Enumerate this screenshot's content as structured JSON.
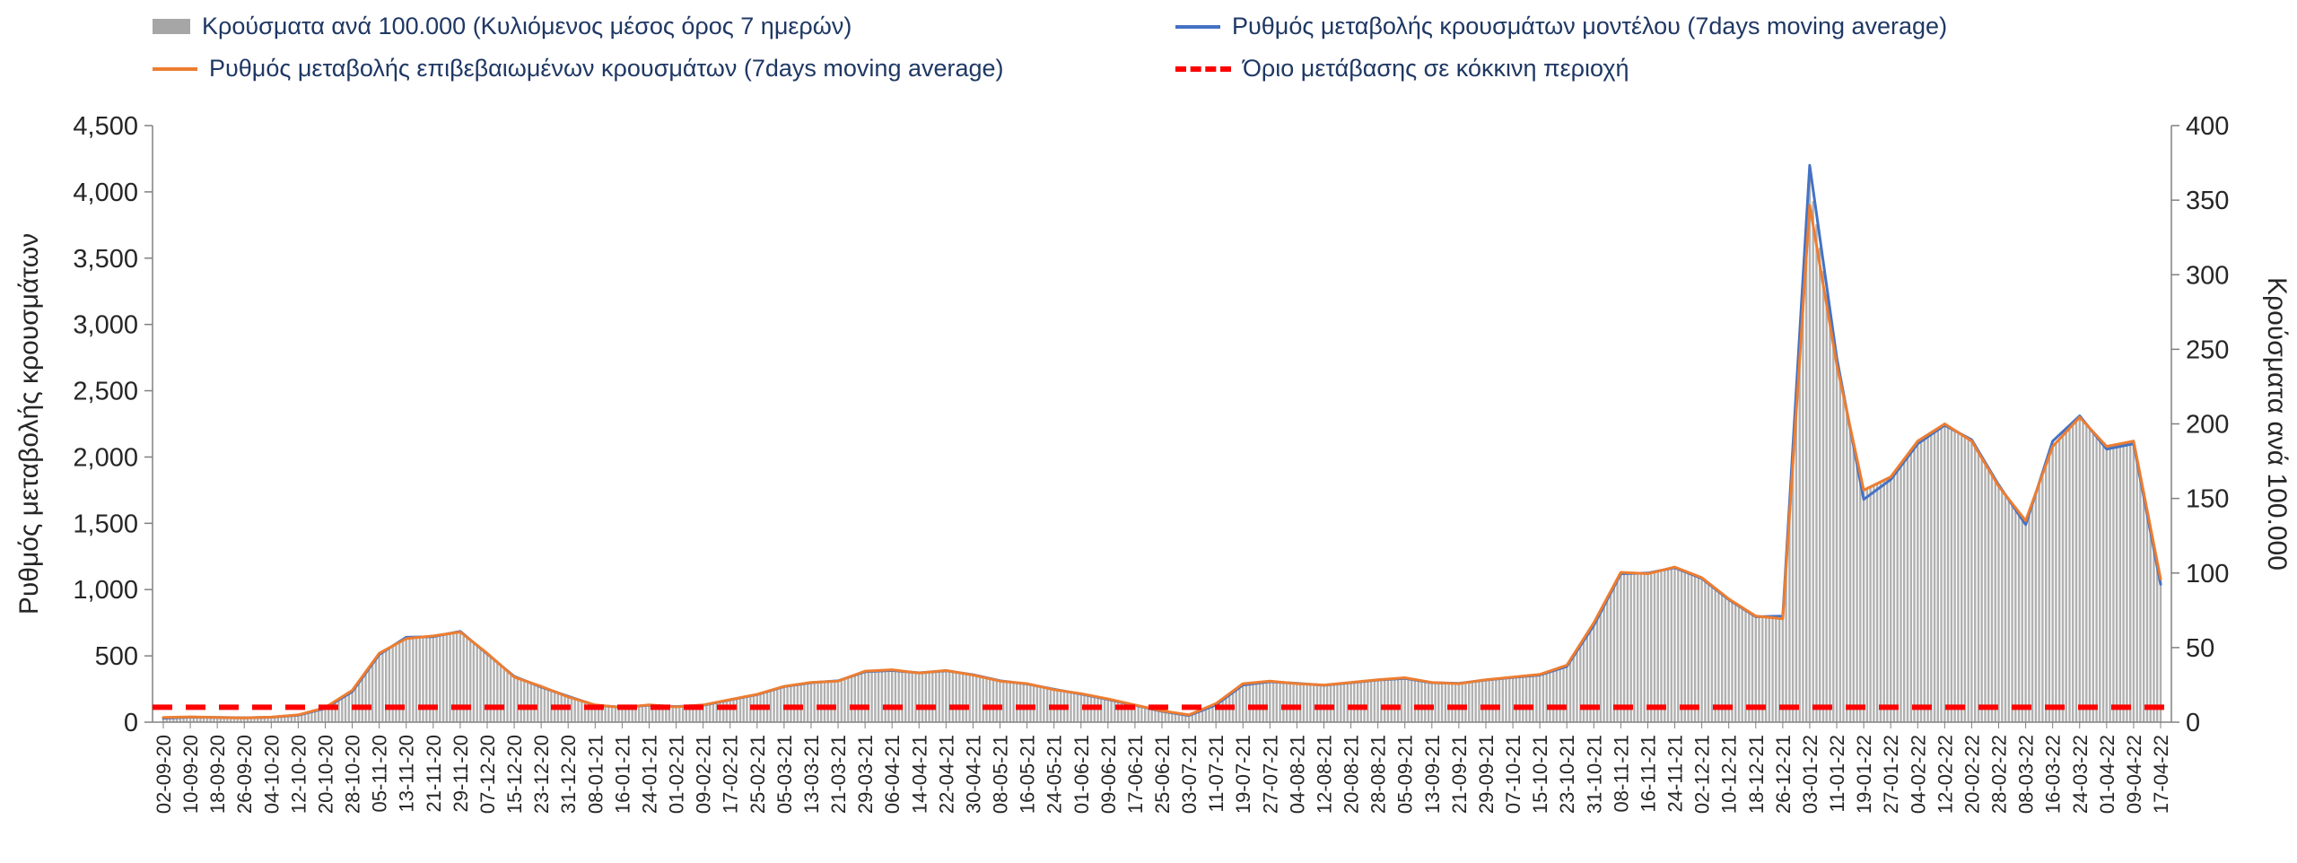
{
  "legend": {
    "position": "top",
    "items": [
      {
        "label": "Κρούσματα ανά 100.000 (Κυλιόμενος μέσος όρος 7 ημερών)",
        "swatch": "bar",
        "color": "#a6a6a6"
      },
      {
        "label": "Ρυθμός μεταβολής κρουσμάτων μοντέλου (7days moving average)",
        "swatch": "line",
        "color": "#4472c4"
      },
      {
        "label": "Ρυθμός μεταβολής επιβεβαιωμένων κρουσμάτων (7days moving average)",
        "swatch": "line",
        "color": "#ed7d31"
      },
      {
        "label": "Όριο μετάβασης σε κόκκινη περιοχή",
        "swatch": "dashed-line",
        "color": "#ff0000"
      }
    ]
  },
  "chart_data": {
    "type": "combo-bar-line",
    "title": "",
    "grid": "off",
    "left_axis": {
      "label": "Ρυθμός μεταβολής κρουσμάτων",
      "min": 0,
      "max": 4500,
      "tick_step": 500,
      "tick_labels": [
        "0",
        "500",
        "1,000",
        "1,500",
        "2,000",
        "2,500",
        "3,000",
        "3,500",
        "4,000",
        "4,500"
      ]
    },
    "right_axis": {
      "label": "Κρούσματα ανά 100.000",
      "min": 0,
      "max": 400,
      "tick_step": 50,
      "tick_labels": [
        "0",
        "50",
        "100",
        "150",
        "200",
        "250",
        "300",
        "350",
        "400"
      ]
    },
    "categories": [
      "02-09-20",
      "10-09-20",
      "18-09-20",
      "26-09-20",
      "04-10-20",
      "12-10-20",
      "20-10-20",
      "28-10-20",
      "05-11-20",
      "13-11-20",
      "21-11-20",
      "29-11-20",
      "07-12-20",
      "15-12-20",
      "23-12-20",
      "31-12-20",
      "08-01-21",
      "16-01-21",
      "24-01-21",
      "01-02-21",
      "09-02-21",
      "17-02-21",
      "25-02-21",
      "05-03-21",
      "13-03-21",
      "21-03-21",
      "29-03-21",
      "06-04-21",
      "14-04-21",
      "22-04-21",
      "30-04-21",
      "08-05-21",
      "16-05-21",
      "24-05-21",
      "01-06-21",
      "09-06-21",
      "17-06-21",
      "25-06-21",
      "03-07-21",
      "11-07-21",
      "19-07-21",
      "27-07-21",
      "04-08-21",
      "12-08-21",
      "20-08-21",
      "28-08-21",
      "05-09-21",
      "13-09-21",
      "21-09-21",
      "29-09-21",
      "07-10-21",
      "15-10-21",
      "23-10-21",
      "31-10-21",
      "08-11-21",
      "16-11-21",
      "24-11-21",
      "02-12-21",
      "10-12-21",
      "18-12-21",
      "26-12-21",
      "03-01-22",
      "11-01-22",
      "19-01-22",
      "27-01-22",
      "04-02-22",
      "12-02-22",
      "20-02-22",
      "28-02-22",
      "08-03-22",
      "16-03-22",
      "24-03-22",
      "01-04-22",
      "09-04-22",
      "17-04-22"
    ],
    "series": [
      {
        "key": "cases-per-100k-bars",
        "name": "Κρούσματα ανά 100.000 (Κυλιόμενος μέσος όρος 7 ημερών)",
        "type": "bar",
        "axis": "right",
        "color": "#b0b0b0",
        "values": [
          3,
          4,
          3,
          3,
          3,
          5,
          10,
          21,
          46,
          56,
          58,
          60,
          46,
          30,
          24,
          17,
          12,
          10,
          12,
          10,
          12,
          15,
          19,
          24,
          27,
          28,
          34,
          35,
          33,
          35,
          32,
          28,
          26,
          22,
          19,
          16,
          12,
          8,
          5,
          12,
          26,
          28,
          26,
          25,
          27,
          28,
          30,
          27,
          26,
          28,
          30,
          32,
          38,
          67,
          100,
          100,
          104,
          97,
          83,
          71,
          69,
          365,
          240,
          156,
          164,
          188,
          200,
          188,
          158,
          135,
          185,
          204,
          185,
          188,
          96
        ]
      },
      {
        "key": "model-rate",
        "name": "Ρυθμός μεταβολής κρουσμάτων μοντέλου (7days moving average)",
        "type": "line",
        "axis": "left",
        "color": "#4472c4",
        "values": [
          30,
          38,
          36,
          33,
          37,
          52,
          105,
          230,
          510,
          640,
          645,
          685,
          515,
          345,
          265,
          195,
          128,
          112,
          128,
          118,
          128,
          168,
          208,
          268,
          298,
          312,
          380,
          390,
          372,
          388,
          358,
          312,
          288,
          248,
          212,
          172,
          128,
          82,
          50,
          130,
          280,
          305,
          292,
          278,
          298,
          318,
          330,
          298,
          292,
          318,
          338,
          355,
          420,
          730,
          1120,
          1125,
          1165,
          1085,
          925,
          795,
          800,
          4200,
          2750,
          1680,
          1830,
          2100,
          2240,
          2130,
          1790,
          1490,
          2120,
          2310,
          2060,
          2100,
          1040
        ]
      },
      {
        "key": "confirmed-rate",
        "name": "Ρυθμός μεταβολής επιβεβαιωμένων κρουσμάτων (7days moving average)",
        "type": "line",
        "axis": "left",
        "color": "#ed7d31",
        "values": [
          35,
          40,
          35,
          32,
          38,
          55,
          110,
          240,
          520,
          630,
          650,
          680,
          520,
          340,
          270,
          190,
          130,
          110,
          130,
          115,
          130,
          170,
          210,
          270,
          300,
          310,
          385,
          395,
          370,
          390,
          355,
          310,
          290,
          245,
          215,
          175,
          130,
          85,
          55,
          140,
          290,
          310,
          290,
          280,
          300,
          320,
          335,
          300,
          290,
          320,
          340,
          360,
          430,
          750,
          1130,
          1120,
          1170,
          1090,
          930,
          800,
          780,
          3900,
          2700,
          1750,
          1850,
          2120,
          2250,
          2120,
          1780,
          1520,
          2080,
          2300,
          2080,
          2120,
          1080
        ]
      },
      {
        "key": "red-zone-threshold",
        "name": "Όριο μετάβασης σε κόκκινη περιοχή",
        "type": "threshold",
        "axis": "right",
        "color": "#ff0000",
        "value": 10
      }
    ]
  }
}
